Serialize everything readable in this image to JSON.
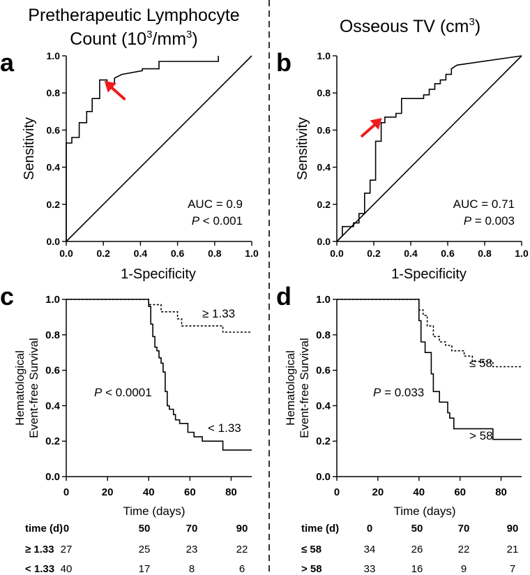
{
  "panel_titles": {
    "a_line1": "Pretherapeutic Lymphocyte",
    "a_line2": "Count (10",
    "a_sup": "3",
    "a_mid": "/mm",
    "a_sup2": "3",
    "a_end": ")",
    "b_main": "Osseous TV (cm",
    "b_sup": "3",
    "b_end": ")"
  },
  "panel_letters": {
    "a": "a",
    "b": "b",
    "c": "c",
    "d": "d"
  },
  "roc_axis": {
    "ylabel": "Sensitivity",
    "xlabel": "1-Specificity",
    "xticks": [
      "0.0",
      "0.2",
      "0.4",
      "0.6",
      "0.8",
      "1.0"
    ],
    "yticks": [
      "0.0",
      "0.2",
      "0.4",
      "0.6",
      "0.8",
      "1.0"
    ]
  },
  "km_axis": {
    "ylabel_line1": "Hematological",
    "ylabel_line2": "Event-free Survival",
    "xlabel": "Time (days)",
    "xticks": [
      "0",
      "20",
      "40",
      "60",
      "80"
    ],
    "yticks": [
      "0.0",
      "0.2",
      "0.4",
      "0.6",
      "0.8",
      "1.0"
    ]
  },
  "annotations": {
    "a_auc": "AUC = 0.9",
    "a_p_italic": "P",
    "a_p_rest": " < 0.001",
    "b_auc": "AUC = 0.71",
    "b_p_italic": "P",
    "b_p_rest": " = 0.003",
    "c_p_italic": "P",
    "c_p_rest": " < 0.0001",
    "c_high": "≥ 1.33",
    "c_low": "< 1.33",
    "d_p_italic": "P",
    "d_p_rest": " = 0.033",
    "d_low": "≤ 58",
    "d_high": "> 58"
  },
  "risk_table_c": {
    "header": [
      "time (d)",
      "0",
      "50",
      "70",
      "90"
    ],
    "rows": [
      {
        "label": "≥ 1.33",
        "values": [
          "27",
          "25",
          "23",
          "22"
        ]
      },
      {
        "label": "< 1.33",
        "values": [
          "40",
          "17",
          "8",
          "6"
        ]
      }
    ]
  },
  "risk_table_d": {
    "header": [
      "time (d)",
      "0",
      "50",
      "70",
      "90"
    ],
    "rows": [
      {
        "label": "≤ 58",
        "values": [
          "34",
          "26",
          "22",
          "21"
        ]
      },
      {
        "label": "> 58",
        "values": [
          "33",
          "16",
          "9",
          "7"
        ]
      }
    ]
  },
  "colors": {
    "arrow": "#ee1c1c",
    "line": "#000000",
    "divider": "#000000"
  },
  "chart_data": [
    {
      "id": "a",
      "type": "line",
      "subtype": "roc",
      "title": "Pretherapeutic Lymphocyte Count (10^3/mm^3)",
      "xlabel": "1-Specificity",
      "ylabel": "Sensitivity",
      "xlim": [
        0,
        1
      ],
      "ylim": [
        0,
        1
      ],
      "series": [
        {
          "name": "ROC",
          "style": "solid",
          "x": [
            0,
            0,
            0.03,
            0.03,
            0.07,
            0.07,
            0.11,
            0.11,
            0.14,
            0.14,
            0.18,
            0.18,
            0.22,
            0.22,
            0.26,
            0.26,
            0.3,
            0.41,
            0.41,
            0.5,
            0.5,
            0.82,
            0.82
          ],
          "y": [
            0,
            0.53,
            0.53,
            0.56,
            0.56,
            0.64,
            0.64,
            0.7,
            0.7,
            0.77,
            0.77,
            0.87,
            0.87,
            0.85,
            0.85,
            0.88,
            0.9,
            0.92,
            0.93,
            0.93,
            0.97,
            0.97,
            1.0
          ]
        },
        {
          "name": "Reference",
          "style": "solid",
          "x": [
            0,
            1
          ],
          "y": [
            0,
            1
          ]
        }
      ],
      "optimal_point": {
        "x": 0.2,
        "y": 0.87
      },
      "auc": 0.9,
      "p": "< 0.001"
    },
    {
      "id": "b",
      "type": "line",
      "subtype": "roc",
      "title": "Osseous TV (cm^3)",
      "xlabel": "1-Specificity",
      "ylabel": "Sensitivity",
      "xlim": [
        0,
        1
      ],
      "ylim": [
        0,
        1
      ],
      "series": [
        {
          "name": "ROC",
          "style": "solid",
          "x": [
            0,
            0.03,
            0.03,
            0.09,
            0.09,
            0.12,
            0.12,
            0.15,
            0.15,
            0.18,
            0.18,
            0.21,
            0.21,
            0.24,
            0.24,
            0.26,
            0.26,
            0.32,
            0.32,
            0.35,
            0.35,
            0.47,
            0.47,
            0.5,
            0.5,
            0.53,
            0.53,
            0.56,
            0.56,
            0.59,
            0.59,
            0.62,
            0.62,
            0.65,
            1.0
          ],
          "y": [
            0,
            0.03,
            0.08,
            0.08,
            0.1,
            0.1,
            0.15,
            0.15,
            0.26,
            0.26,
            0.33,
            0.33,
            0.54,
            0.54,
            0.64,
            0.64,
            0.67,
            0.67,
            0.69,
            0.69,
            0.77,
            0.77,
            0.79,
            0.79,
            0.82,
            0.82,
            0.85,
            0.85,
            0.87,
            0.87,
            0.9,
            0.9,
            0.93,
            0.95,
            1.0
          ]
        },
        {
          "name": "Reference",
          "style": "solid",
          "x": [
            0,
            1
          ],
          "y": [
            0,
            1
          ]
        }
      ],
      "optimal_point": {
        "x": 0.25,
        "y": 0.67
      },
      "auc": 0.71,
      "p": "= 0.003"
    },
    {
      "id": "c",
      "type": "line",
      "subtype": "kaplan-meier",
      "xlabel": "Time (days)",
      "ylabel": "Hematological Event-free Survival",
      "xlim": [
        0,
        90
      ],
      "ylim": [
        0,
        1
      ],
      "series": [
        {
          "name": "≥ 1.33",
          "style": "dashed",
          "x": [
            0,
            40,
            40,
            46,
            46,
            54,
            54,
            56,
            56,
            76,
            76,
            90
          ],
          "y": [
            1.0,
            1.0,
            0.97,
            0.97,
            0.93,
            0.93,
            0.89,
            0.89,
            0.85,
            0.85,
            0.815,
            0.815
          ]
        },
        {
          "name": "< 1.33",
          "style": "solid",
          "x": [
            0,
            40,
            40,
            41,
            41,
            42,
            42,
            43,
            43,
            44,
            44,
            45,
            45,
            46,
            46,
            47,
            47,
            48,
            48,
            49,
            49,
            50,
            50,
            52,
            52,
            53,
            53,
            55,
            55,
            59,
            59,
            62,
            62,
            66,
            66,
            76,
            76,
            90
          ],
          "y": [
            1.0,
            1.0,
            0.96,
            0.96,
            0.86,
            0.86,
            0.79,
            0.79,
            0.73,
            0.73,
            0.71,
            0.71,
            0.67,
            0.67,
            0.64,
            0.64,
            0.59,
            0.59,
            0.48,
            0.48,
            0.4,
            0.4,
            0.38,
            0.38,
            0.35,
            0.35,
            0.32,
            0.32,
            0.3,
            0.3,
            0.25,
            0.25,
            0.225,
            0.225,
            0.2,
            0.2,
            0.15,
            0.15
          ]
        }
      ],
      "p": "< 0.0001"
    },
    {
      "id": "d",
      "type": "line",
      "subtype": "kaplan-meier",
      "xlabel": "Time (days)",
      "ylabel": "Hematological Event-free Survival",
      "xlim": [
        0,
        90
      ],
      "ylim": [
        0,
        1
      ],
      "series": [
        {
          "name": "≤ 58",
          "style": "dashed",
          "x": [
            0,
            40,
            40,
            42,
            42,
            44,
            44,
            47,
            47,
            50,
            50,
            53,
            53,
            56,
            56,
            62,
            62,
            66,
            66,
            76,
            76,
            90
          ],
          "y": [
            1.0,
            1.0,
            0.94,
            0.94,
            0.91,
            0.91,
            0.85,
            0.85,
            0.79,
            0.79,
            0.76,
            0.76,
            0.74,
            0.74,
            0.71,
            0.71,
            0.68,
            0.68,
            0.65,
            0.65,
            0.62,
            0.62
          ]
        },
        {
          "name": "> 58",
          "style": "solid",
          "x": [
            0,
            40,
            40,
            41,
            41,
            43,
            43,
            46,
            46,
            47,
            47,
            50,
            50,
            54,
            54,
            55,
            55,
            57,
            57,
            62,
            62,
            76,
            76,
            90
          ],
          "y": [
            1.0,
            1.0,
            0.88,
            0.88,
            0.76,
            0.76,
            0.7,
            0.7,
            0.58,
            0.58,
            0.48,
            0.48,
            0.42,
            0.42,
            0.36,
            0.36,
            0.33,
            0.33,
            0.27,
            0.27,
            0.27,
            0.27,
            0.21,
            0.21
          ]
        }
      ],
      "p": "= 0.033"
    }
  ]
}
